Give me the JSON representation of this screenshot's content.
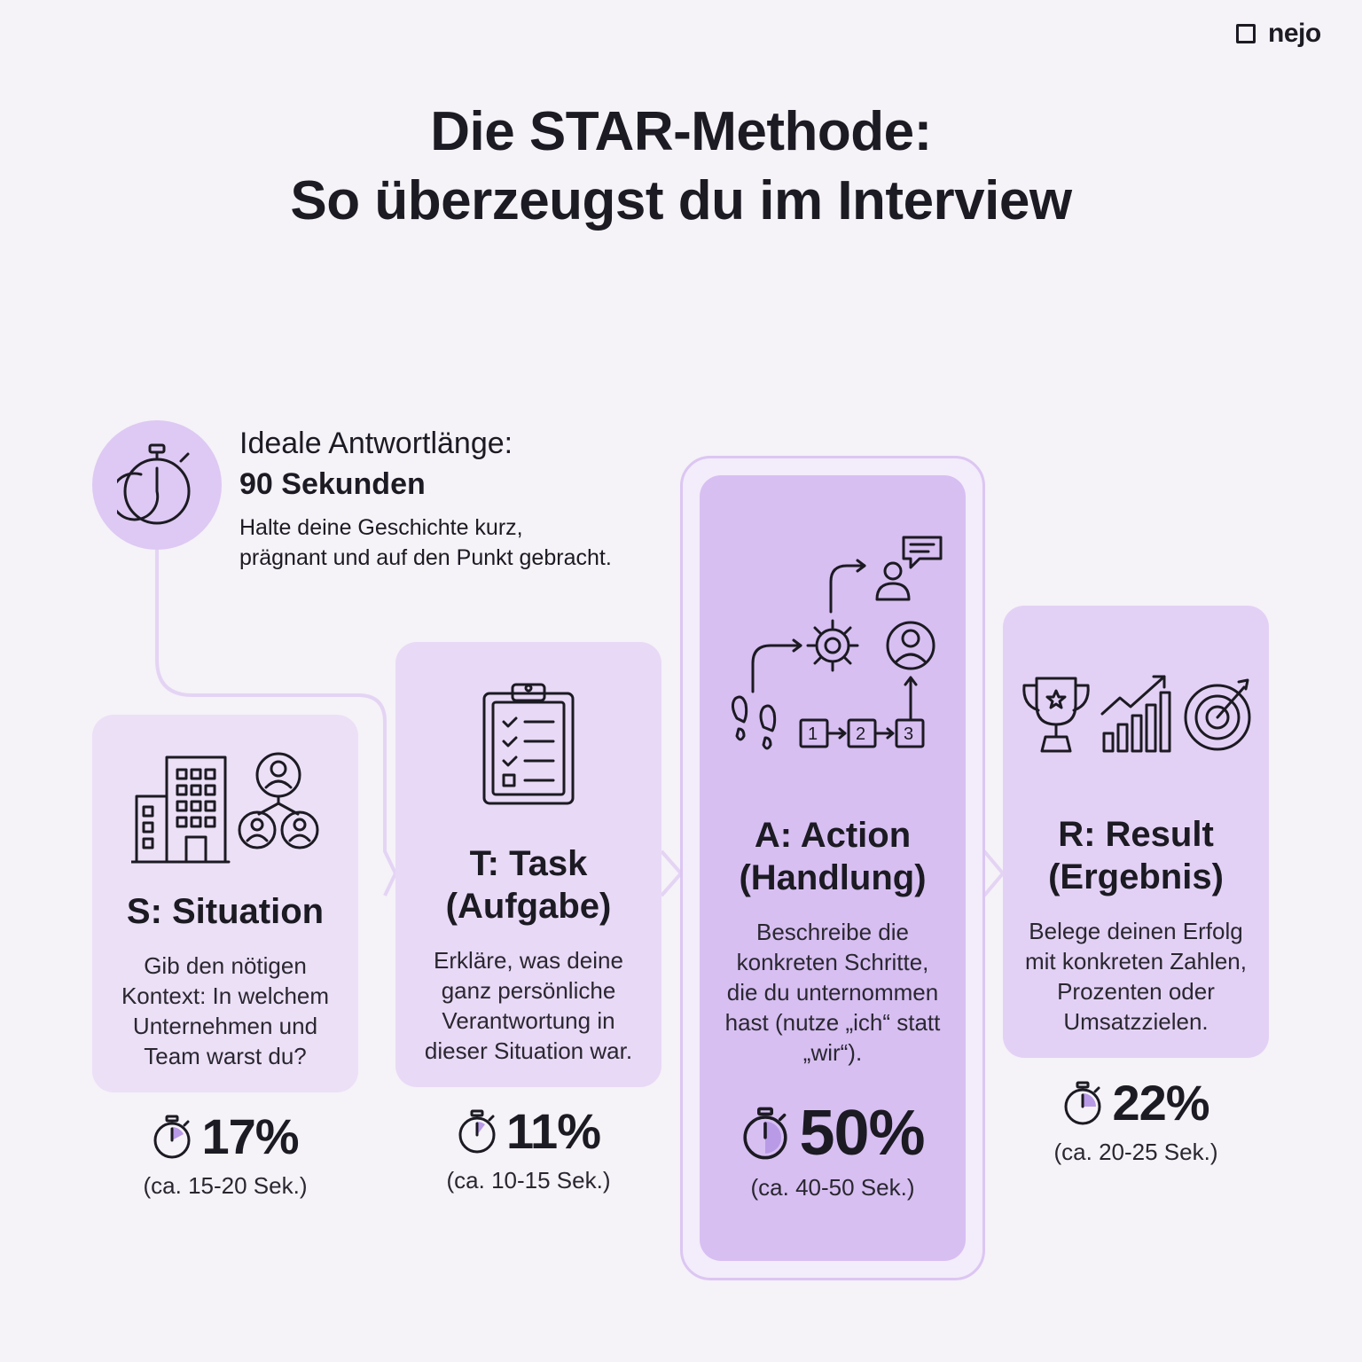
{
  "brand": {
    "name": "nejo"
  },
  "title": {
    "line1": "Die STAR-Methode:",
    "line2": "So überzeugst du im Interview"
  },
  "intro": {
    "label": "Ideale Antwortlänge:",
    "value": "90 Sekunden",
    "desc_line1": "Halte deine Geschichte kurz,",
    "desc_line2": "prägnant und auf den Punkt gebracht."
  },
  "steps": [
    {
      "title": "S: Situation",
      "desc": [
        "Gib den nötigen",
        "Kontext: In welchem",
        "Unternehmen und",
        "Team warst du?"
      ],
      "percent": "17%",
      "time": "(ca. 15-20 Sek.)",
      "icons": [
        "building-icon",
        "team-network-icon"
      ]
    },
    {
      "title_line1": "T: Task",
      "title_line2": "(Aufgabe)",
      "desc": [
        "Erkläre, was deine",
        "ganz persönliche",
        "Verantwortung in",
        "dieser Situation war."
      ],
      "percent": "11%",
      "time": "(ca. 10-15 Sek.)",
      "icons": [
        "clipboard-checklist-icon"
      ]
    },
    {
      "title_line1": "A: Action",
      "title_line2": "(Handlung)",
      "desc": [
        "Beschreibe die",
        "konkreten Schritte,",
        "die du unternommen",
        "hast (nutze „ich“ statt",
        "„wir“)."
      ],
      "percent": "50%",
      "time": "(ca. 40-50 Sek.)",
      "steps_labels": [
        "1",
        "2",
        "3"
      ],
      "icons": [
        "footsteps-icon",
        "gear-icon",
        "person-chat-icon",
        "person-circle-icon",
        "step-boxes-icon"
      ]
    },
    {
      "title_line1": "R: Result",
      "title_line2": "(Ergebnis)",
      "desc": [
        "Belege deinen Erfolg",
        "mit konkreten Zahlen,",
        "Prozenten oder",
        "Umsatzzielen."
      ],
      "percent": "22%",
      "time": "(ca. 20-25 Sek.)",
      "icons": [
        "trophy-icon",
        "growth-chart-icon",
        "target-icon"
      ]
    }
  ],
  "colors": {
    "background": "#f5f2f8",
    "card_light": "#ece0f7",
    "card_action": "#d7bff2",
    "accent": "#ddc9f3",
    "text": "#1c1a22"
  }
}
